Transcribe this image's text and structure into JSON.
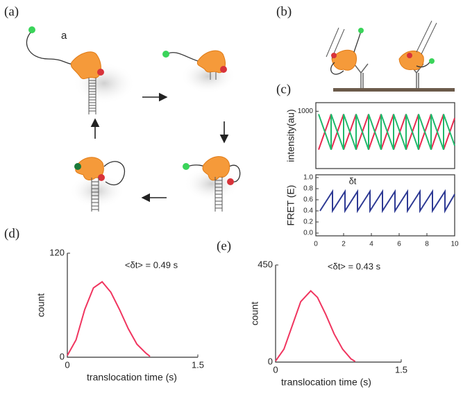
{
  "panels": [
    "(a)",
    "(b)",
    "(c)",
    "(d)",
    "(e)"
  ],
  "diagram_label": "a",
  "chart_data": [
    {
      "type": "line",
      "ylabel": "intensity(au)",
      "x": [
        0.2,
        1.1,
        1.1,
        2.0,
        2.0,
        2.9,
        2.9,
        3.8,
        3.8,
        4.7,
        4.7,
        5.6,
        5.6,
        6.5,
        6.5,
        7.4,
        7.4,
        8.3,
        8.3,
        9.2,
        9.2,
        10.0
      ],
      "xlim": [
        0,
        10
      ],
      "ylim": [
        0,
        1150
      ],
      "yticks": [
        1000
      ],
      "series": [
        {
          "color": "#e8294f",
          "values": [
            330,
            950,
            330,
            950,
            330,
            950,
            330,
            950,
            330,
            950,
            330,
            950,
            330,
            950,
            330,
            950,
            330,
            950,
            330,
            950,
            330,
            880
          ]
        },
        {
          "color": "#1fb86a",
          "values": [
            950,
            330,
            950,
            330,
            950,
            330,
            950,
            330,
            950,
            330,
            950,
            330,
            950,
            330,
            950,
            330,
            950,
            330,
            950,
            330,
            950,
            400
          ]
        }
      ]
    },
    {
      "type": "line",
      "ylabel": "FRET (E)",
      "annotation": "δt",
      "x": [
        0.3,
        1.2,
        1.2,
        2.1,
        2.1,
        3.0,
        3.0,
        3.9,
        3.9,
        4.8,
        4.8,
        5.7,
        5.7,
        6.6,
        6.6,
        7.5,
        7.5,
        8.4,
        8.4,
        9.3,
        9.3,
        10.0
      ],
      "xlim": [
        0,
        10
      ],
      "ylim": [
        -0.05,
        1.05
      ],
      "xticks": [
        0,
        2,
        4,
        6,
        8,
        10
      ],
      "yticks": [
        {
          "value": 0,
          "label": "0.0"
        },
        0.2,
        0.4,
        0.6,
        0.8,
        {
          "value": 1,
          "label": "1.0"
        }
      ],
      "series": [
        {
          "color": "#2e3a94",
          "values": [
            0.4,
            0.75,
            0.4,
            0.75,
            0.4,
            0.75,
            0.4,
            0.75,
            0.4,
            0.75,
            0.4,
            0.75,
            0.4,
            0.75,
            0.4,
            0.75,
            0.4,
            0.75,
            0.4,
            0.75,
            0.4,
            0.7
          ]
        }
      ]
    },
    {
      "type": "line",
      "ylabel": "count",
      "xlabel": "translocation time (s)",
      "annotation": "<δt> = 0.49 s",
      "x": [
        0,
        0.1,
        0.2,
        0.3,
        0.4,
        0.5,
        0.6,
        0.7,
        0.8,
        0.9,
        0.95
      ],
      "xlim": [
        0,
        1.5
      ],
      "ylim": [
        0,
        120
      ],
      "xticks": [
        0,
        1.5
      ],
      "yticks": [
        0,
        120
      ],
      "series": [
        {
          "color": "#f0355f",
          "values": [
            2,
            20,
            55,
            80,
            87,
            75,
            55,
            33,
            15,
            5,
            1
          ]
        }
      ]
    },
    {
      "type": "line",
      "ylabel": "count",
      "xlabel": "translocation time (s)",
      "annotation": "<δt> = 0.43 s",
      "x": [
        0,
        0.1,
        0.2,
        0.3,
        0.42,
        0.5,
        0.6,
        0.7,
        0.8,
        0.9,
        0.95
      ],
      "xlim": [
        0,
        1.5
      ],
      "ylim": [
        0,
        450
      ],
      "xticks": [
        0,
        1.5
      ],
      "yticks": [
        0,
        450
      ],
      "series": [
        {
          "color": "#f0355f",
          "values": [
            5,
            60,
            170,
            280,
            330,
            300,
            220,
            130,
            60,
            15,
            3
          ]
        }
      ]
    }
  ]
}
